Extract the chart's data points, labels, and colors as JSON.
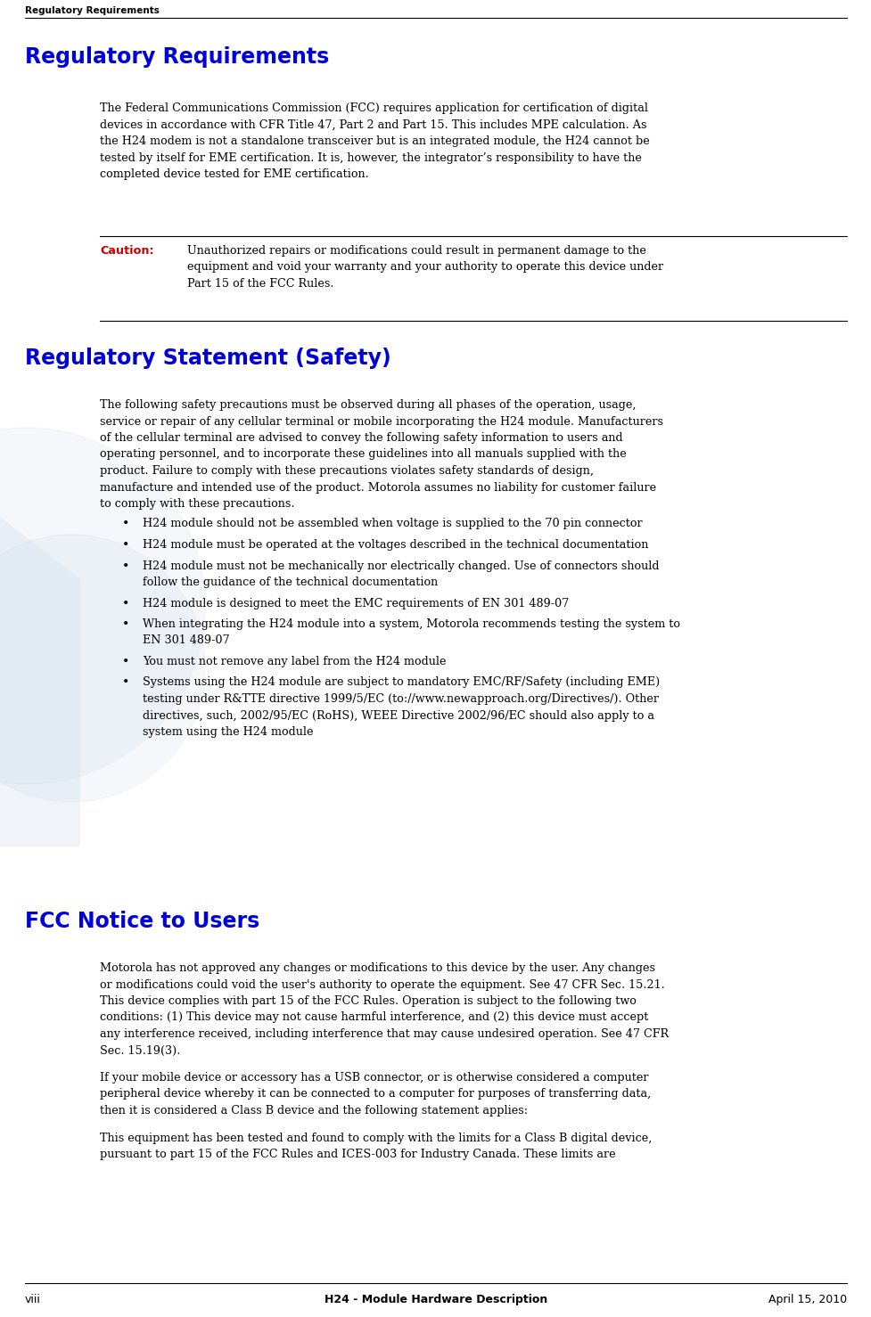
{
  "bg_color": "#ffffff",
  "header_text": "Regulatory Requirements",
  "header_color": "#000000",
  "footer_left": "viii",
  "footer_center": "H24 - Module Hardware Description",
  "footer_right": "April 15, 2010",
  "section1_title": "Regulatory Requirements",
  "section1_title_color": "#0000dd",
  "caution_label": "Caution:",
  "caution_label_color": "#cc0000",
  "caution_lines": [
    "Unauthorized repairs or modifications could result in permanent damage to the",
    "equipment and void your warranty and your authority to operate this device under",
    "Part 15 of the FCC Rules."
  ],
  "section2_title": "Regulatory Statement (Safety)",
  "section2_title_color": "#0000dd",
  "section3_title": "FCC Notice to Users",
  "section3_title_color": "#0000dd",
  "body_color": "#000000",
  "watermark_color": "#c8d8ea",
  "link_color": "#0000dd",
  "body1_lines": [
    "The Federal Communications Commission (FCC) requires application for certification of digital",
    "devices in accordance with CFR Title 47, Part 2 and Part 15. This includes MPE calculation. As",
    "the H24 modem is not a standalone transceiver but is an integrated module, the H24 cannot be",
    "tested by itself for EME certification. It is, however, the integrator’s responsibility to have the",
    "completed device tested for EME certification."
  ],
  "body2_lines": [
    "The following safety precautions must be observed during all phases of the operation, usage,",
    "service or repair of any cellular terminal or mobile incorporating the H24 module. Manufacturers",
    "of the cellular terminal are advised to convey the following safety information to users and",
    "operating personnel, and to incorporate these guidelines into all manuals supplied with the",
    "product. Failure to comply with these precautions violates safety standards of design,",
    "manufacture and intended use of the product. Motorola assumes no liability for customer failure",
    "to comply with these precautions."
  ],
  "bullets": [
    [
      "H24 module should not be assembled when voltage is supplied to the 70 pin connector"
    ],
    [
      "H24 module must be operated at the voltages described in the technical documentation"
    ],
    [
      "H24 module must not be mechanically nor electrically changed. Use of connectors should",
      "follow the guidance of the technical documentation"
    ],
    [
      "H24 module is designed to meet the EMC requirements of EN 301 489-07"
    ],
    [
      "When integrating the H24 module into a system, Motorola recommends testing the system to",
      "EN 301 489-07"
    ],
    [
      "You must not remove any label from the H24 module"
    ],
    [
      "Systems using the H24 module are subject to mandatory EMC/RF/Safety (including EME)",
      "testing under R&TTE directive 1999/5/EC (to://www.newapproach.org/Directives/). Other",
      "directives, such, 2002/95/EC (RoHS), WEEE Directive 2002/96/EC should also apply to a",
      "system using the H24 module"
    ]
  ],
  "body3_lines1": [
    "Motorola has not approved any changes or modifications to this device by the user. Any changes",
    "or modifications could void the user's authority to operate the equipment. See 47 CFR Sec. 15.21.",
    "This device complies with part 15 of the FCC Rules. Operation is subject to the following two",
    "conditions: (1) This device may not cause harmful interference, and (2) this device must accept",
    "any interference received, including interference that may cause undesired operation. See 47 CFR",
    "Sec. 15.19(3)."
  ],
  "body3_lines2": [
    "If your mobile device or accessory has a USB connector, or is otherwise considered a computer",
    "peripheral device whereby it can be connected to a computer for purposes of transferring data,",
    "then it is considered a Class B device and the following statement applies:"
  ],
  "body3_lines3": [
    "This equipment has been tested and found to comply with the limits for a Class B digital device,",
    "pursuant to part 15 of the FCC Rules and ICES-003 for Industry Canada. These limits are"
  ]
}
